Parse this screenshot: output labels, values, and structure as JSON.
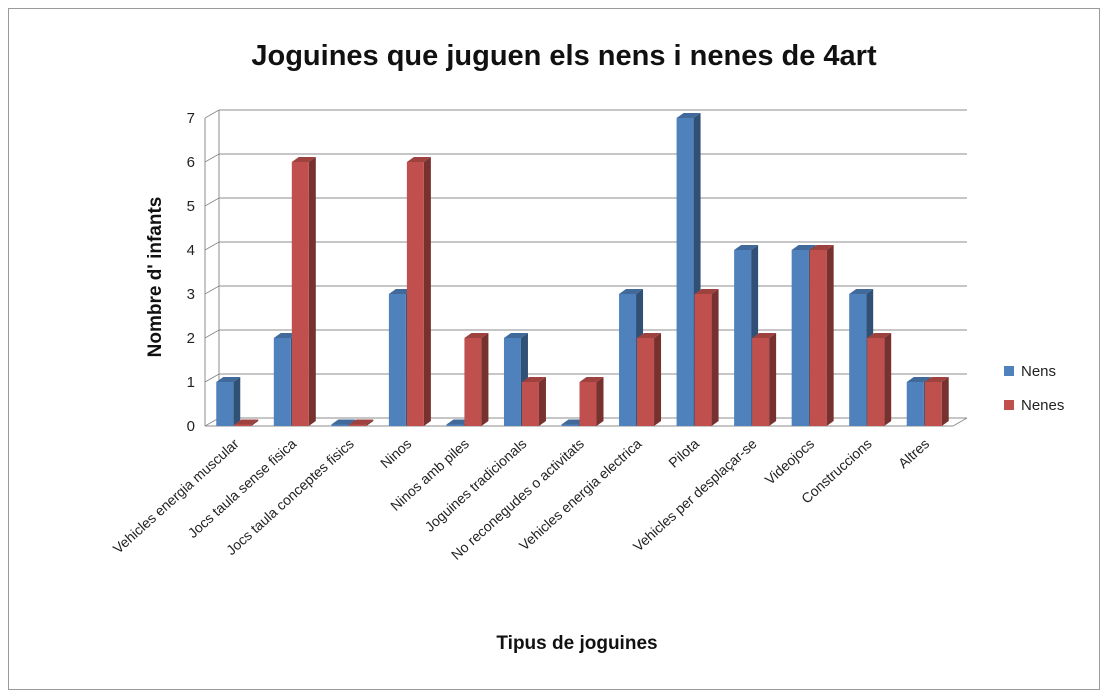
{
  "chart_data": {
    "type": "bar",
    "title": "Joguines que juguen els nens i nenes de 4art",
    "xlabel": "Tipus de joguines",
    "ylabel": "Nombre d' infants",
    "ylim": [
      0,
      7
    ],
    "yticks": [
      "0",
      "1",
      "2",
      "3",
      "4",
      "5",
      "6",
      "7"
    ],
    "grid": true,
    "legend_position": "right",
    "categories": [
      "Vehicles energia muscular",
      "Jocs taula sense fisica",
      "Jocs taula conceptes fisics",
      "Ninos",
      "Ninos amb piles",
      "Joguines tradicionals",
      "No reconegudes o activitats",
      "Vehicles energia electrica",
      "Pilota",
      "Vehicles per desplaçar-se",
      "Videojocs",
      "Construccions",
      "Altres"
    ],
    "series": [
      {
        "name": "Nens",
        "color": "#4f81bd",
        "values": [
          1,
          2,
          0,
          3,
          0,
          2,
          0,
          3,
          7,
          4,
          4,
          3,
          1
        ]
      },
      {
        "name": "Nenes",
        "color": "#c0504d",
        "values": [
          0,
          6,
          0,
          6,
          2,
          1,
          1,
          2,
          3,
          2,
          4,
          2,
          1
        ]
      }
    ]
  }
}
